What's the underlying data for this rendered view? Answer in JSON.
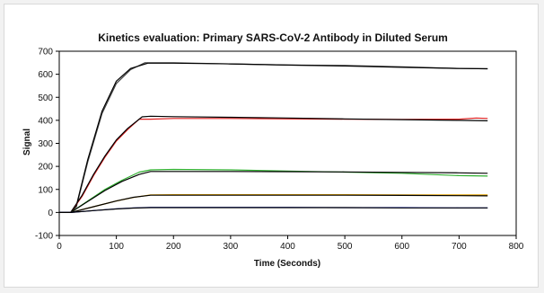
{
  "chart_data": {
    "type": "line",
    "title": "Kinetics evaluation: Primary SARS-CoV-2 Antibody in Diluted Serum",
    "xlabel": "Time (Seconds)",
    "ylabel": "Signal",
    "xlim": [
      0,
      800
    ],
    "ylim": [
      -100,
      700
    ],
    "x_ticks": [
      0,
      100,
      200,
      300,
      400,
      500,
      600,
      700,
      800
    ],
    "y_ticks": [
      -100,
      0,
      100,
      200,
      300,
      400,
      500,
      600,
      700
    ],
    "grid": false,
    "legend": "none",
    "series": [
      {
        "color": "#444444",
        "points": [
          [
            0,
            0
          ],
          [
            20,
            0
          ],
          [
            30,
            25
          ],
          [
            50,
            220
          ],
          [
            75,
            430
          ],
          [
            100,
            560
          ],
          [
            125,
            620
          ],
          [
            150,
            650
          ],
          [
            200,
            650
          ],
          [
            300,
            645
          ],
          [
            400,
            640
          ],
          [
            500,
            638
          ],
          [
            600,
            632
          ],
          [
            700,
            625
          ],
          [
            750,
            624
          ]
        ]
      },
      {
        "color": "#000000",
        "points": [
          [
            0,
            0
          ],
          [
            20,
            0
          ],
          [
            30,
            30
          ],
          [
            50,
            230
          ],
          [
            75,
            440
          ],
          [
            100,
            570
          ],
          [
            125,
            625
          ],
          [
            155,
            648
          ],
          [
            200,
            648
          ],
          [
            300,
            645
          ],
          [
            400,
            640
          ],
          [
            500,
            636
          ],
          [
            600,
            630
          ],
          [
            700,
            625
          ],
          [
            750,
            624
          ]
        ]
      },
      {
        "color": "#e02020",
        "points": [
          [
            0,
            0
          ],
          [
            20,
            0
          ],
          [
            40,
            70
          ],
          [
            60,
            160
          ],
          [
            80,
            240
          ],
          [
            100,
            310
          ],
          [
            120,
            360
          ],
          [
            140,
            405
          ],
          [
            160,
            405
          ],
          [
            200,
            408
          ],
          [
            300,
            408
          ],
          [
            400,
            406
          ],
          [
            500,
            405
          ],
          [
            600,
            404
          ],
          [
            700,
            405
          ],
          [
            730,
            410
          ],
          [
            750,
            408
          ]
        ]
      },
      {
        "color": "#000000",
        "points": [
          [
            0,
            0
          ],
          [
            20,
            0
          ],
          [
            40,
            75
          ],
          [
            60,
            165
          ],
          [
            80,
            245
          ],
          [
            100,
            315
          ],
          [
            120,
            365
          ],
          [
            145,
            415
          ],
          [
            160,
            418
          ],
          [
            200,
            416
          ],
          [
            300,
            413
          ],
          [
            400,
            410
          ],
          [
            500,
            406
          ],
          [
            600,
            403
          ],
          [
            700,
            400
          ],
          [
            750,
            398
          ]
        ]
      },
      {
        "color": "#30b030",
        "points": [
          [
            0,
            0
          ],
          [
            20,
            0
          ],
          [
            50,
            50
          ],
          [
            80,
            100
          ],
          [
            110,
            140
          ],
          [
            140,
            175
          ],
          [
            160,
            185
          ],
          [
            200,
            187
          ],
          [
            300,
            185
          ],
          [
            400,
            180
          ],
          [
            500,
            175
          ],
          [
            600,
            170
          ],
          [
            700,
            160
          ],
          [
            750,
            158
          ]
        ]
      },
      {
        "color": "#000000",
        "points": [
          [
            0,
            0
          ],
          [
            20,
            0
          ],
          [
            50,
            48
          ],
          [
            80,
            95
          ],
          [
            110,
            135
          ],
          [
            140,
            165
          ],
          [
            160,
            178
          ],
          [
            200,
            178
          ],
          [
            300,
            178
          ],
          [
            400,
            177
          ],
          [
            500,
            176
          ],
          [
            600,
            174
          ],
          [
            700,
            172
          ],
          [
            750,
            170
          ]
        ]
      },
      {
        "color": "#e0a000",
        "points": [
          [
            0,
            0
          ],
          [
            20,
            0
          ],
          [
            60,
            25
          ],
          [
            100,
            50
          ],
          [
            130,
            65
          ],
          [
            160,
            76
          ],
          [
            200,
            77
          ],
          [
            300,
            77
          ],
          [
            400,
            77
          ],
          [
            500,
            77
          ],
          [
            600,
            76
          ],
          [
            700,
            76
          ],
          [
            750,
            76
          ]
        ]
      },
      {
        "color": "#000000",
        "points": [
          [
            0,
            0
          ],
          [
            20,
            0
          ],
          [
            60,
            25
          ],
          [
            100,
            50
          ],
          [
            130,
            66
          ],
          [
            160,
            75
          ],
          [
            200,
            75
          ],
          [
            300,
            75
          ],
          [
            400,
            75
          ],
          [
            500,
            75
          ],
          [
            600,
            74
          ],
          [
            700,
            73
          ],
          [
            750,
            72
          ]
        ]
      },
      {
        "color": "#2030c0",
        "points": [
          [
            0,
            0
          ],
          [
            20,
            0
          ],
          [
            60,
            8
          ],
          [
            100,
            16
          ],
          [
            130,
            20
          ],
          [
            160,
            22
          ],
          [
            200,
            22
          ],
          [
            300,
            22
          ],
          [
            400,
            22
          ],
          [
            500,
            21
          ],
          [
            600,
            21
          ],
          [
            700,
            20
          ],
          [
            750,
            20
          ]
        ]
      },
      {
        "color": "#000000",
        "points": [
          [
            0,
            0
          ],
          [
            20,
            0
          ],
          [
            60,
            8
          ],
          [
            100,
            15
          ],
          [
            130,
            19
          ],
          [
            160,
            21
          ],
          [
            200,
            21
          ],
          [
            300,
            21
          ],
          [
            400,
            21
          ],
          [
            500,
            21
          ],
          [
            600,
            20
          ],
          [
            700,
            20
          ],
          [
            750,
            20
          ]
        ]
      }
    ]
  }
}
